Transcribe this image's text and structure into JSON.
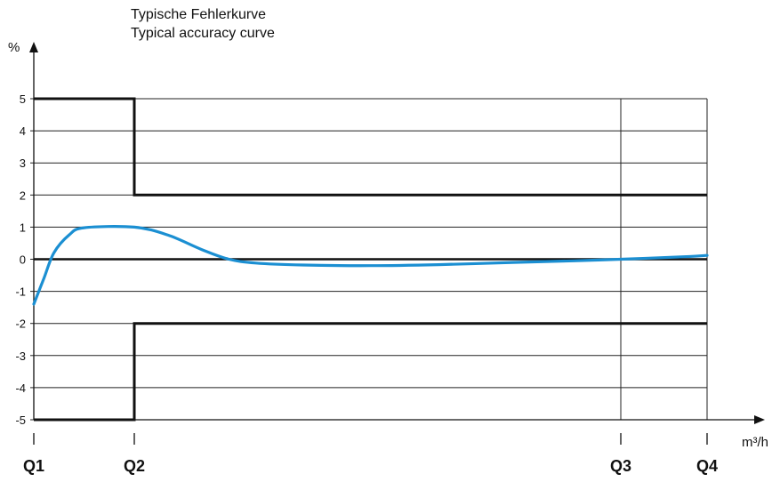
{
  "chart_data": {
    "type": "line",
    "title": "Typische Fehlerkurve",
    "subtitle": "Typical accuracy curve",
    "ylabel": "%",
    "xlabel": "m³/h",
    "ylim": [
      -5,
      5
    ],
    "yticks": [
      "5",
      "4",
      "3",
      "2",
      "1",
      "0",
      "-1",
      "-2",
      "-3",
      "-4",
      "-5"
    ],
    "xticks": [
      "Q1",
      "Q2",
      "Q3",
      "Q4"
    ],
    "grid": true,
    "series": [
      {
        "color": "#1b8fd2",
        "points": [
          {
            "x": 0,
            "y": -1.4
          },
          {
            "x": 0.1,
            "y": -0.6
          },
          {
            "x": 0.2,
            "y": 0.2
          },
          {
            "x": 0.35,
            "y": 0.75
          },
          {
            "x": 0.5,
            "y": 0.98
          },
          {
            "x": 1.0,
            "y": 1.0
          },
          {
            "x": 1.5,
            "y": 0.75
          },
          {
            "x": 2.0,
            "y": 0.3
          },
          {
            "x": 2.4,
            "y": 0.0
          },
          {
            "x": 2.8,
            "y": -0.12
          },
          {
            "x": 3.5,
            "y": -0.18
          },
          {
            "x": 4.5,
            "y": -0.2
          },
          {
            "x": 5.5,
            "y": -0.17
          },
          {
            "x": 6.6,
            "y": -0.1
          },
          {
            "x": 7.5,
            "y": -0.05
          },
          {
            "x": 8.2,
            "y": 0.0
          },
          {
            "x": 9.0,
            "y": 0.07
          },
          {
            "x": 9.4,
            "y": 0.12
          }
        ]
      }
    ],
    "limits": {
      "color": "#111111",
      "upper": [
        {
          "x": 0,
          "y": 5
        },
        {
          "x": 1,
          "y": 5
        },
        {
          "x": 1,
          "y": 2
        },
        {
          "x": 9.4,
          "y": 2
        }
      ],
      "lower": [
        {
          "x": 0,
          "y": -5
        },
        {
          "x": 1,
          "y": -5
        },
        {
          "x": 1,
          "y": -2
        },
        {
          "x": 9.4,
          "y": -2
        }
      ]
    },
    "reference_line": {
      "y": 0
    }
  }
}
